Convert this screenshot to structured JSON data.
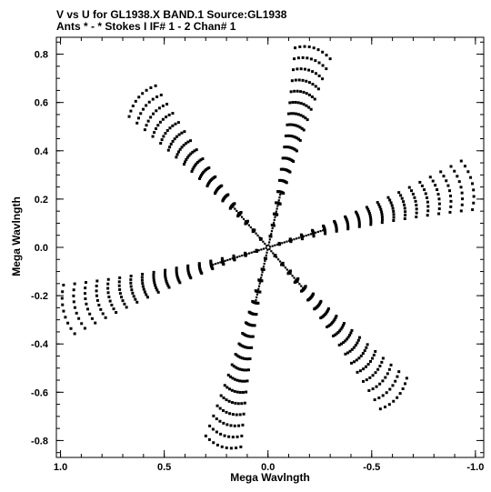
{
  "chart_data": {
    "type": "scatter",
    "title_line1": "V vs U for GL1938.X BAND.1   Source:GL1938",
    "title_line2": "Ants * - *     Stokes I   IF# 1 - 2   Chan# 1",
    "xlabel": "Mega Wavlngth",
    "ylabel": "Mega Wavlngth",
    "xlim": [
      1.02,
      -1.04
    ],
    "ylim": [
      -0.87,
      0.87
    ],
    "xticks": [
      1.0,
      0.5,
      0.0,
      -0.5,
      -1.0
    ],
    "xtick_labels": [
      "1.0",
      "0.5",
      "0.0",
      "-0.5",
      "-1.0"
    ],
    "yticks": [
      0.8,
      0.6,
      0.4,
      0.2,
      0.0,
      -0.2,
      -0.4,
      -0.6,
      -0.8
    ],
    "ytick_labels": [
      "0.8",
      "0.6",
      "0.4",
      "0.2",
      "0.0",
      "-0.2",
      "-0.4",
      "-0.6",
      "-0.8"
    ],
    "marker_color": "#000000",
    "coverage": {
      "arms": [
        {
          "angle_deg": 105,
          "max_radius": 0.855
        },
        {
          "angle_deg": 165,
          "max_radius": 1.02
        },
        {
          "angle_deg": 225,
          "max_radius": 0.88
        },
        {
          "angle_deg": 285,
          "max_radius": 0.855
        },
        {
          "angle_deg": 345,
          "max_radius": 1.02
        },
        {
          "angle_deg": 45,
          "max_radius": 0.88
        }
      ],
      "tracks_per_arm": 18,
      "points_per_track": 9,
      "track_arc_deg": 12
    }
  }
}
